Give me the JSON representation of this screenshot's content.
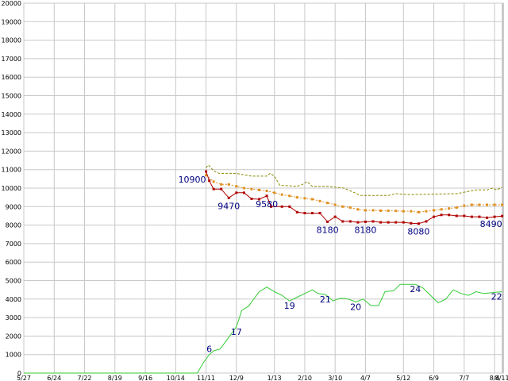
{
  "chart_data": {
    "type": "line",
    "title": "",
    "xlabel": "",
    "ylabel": "",
    "ylim": [
      0,
      20000
    ],
    "grid": true,
    "y_ticks": [
      0,
      1000,
      2000,
      3000,
      4000,
      5000,
      6000,
      7000,
      8000,
      9000,
      10000,
      11000,
      12000,
      13000,
      14000,
      15000,
      16000,
      17000,
      18000,
      19000,
      20000
    ],
    "x_ticks": [
      {
        "label": "5/27",
        "x": 0
      },
      {
        "label": "6/24",
        "x": 28
      },
      {
        "label": "7/22",
        "x": 56
      },
      {
        "label": "8/19",
        "x": 84
      },
      {
        "label": "9/16",
        "x": 112
      },
      {
        "label": "10/14",
        "x": 140
      },
      {
        "label": "11/11",
        "x": 168
      },
      {
        "label": "12/9",
        "x": 196
      },
      {
        "label": "1/13",
        "x": 231
      },
      {
        "label": "2/10",
        "x": 259
      },
      {
        "label": "3/10",
        "x": 287
      },
      {
        "label": "4/7",
        "x": 315
      },
      {
        "label": "5/12",
        "x": 350
      },
      {
        "label": "6/9",
        "x": 378
      },
      {
        "label": "7/7",
        "x": 406
      },
      {
        "label": "8/4",
        "x": 434
      },
      {
        "label": "8/11",
        "x": 441
      }
    ],
    "x_range": [
      0,
      442
    ],
    "series": [
      {
        "color": "#888800",
        "dash": "3,2",
        "markers": false,
        "points": [
          [
            168,
            11100
          ],
          [
            170,
            11250
          ],
          [
            172,
            11150
          ],
          [
            174,
            11000
          ],
          [
            176,
            10900
          ],
          [
            180,
            10800
          ],
          [
            196,
            10800
          ],
          [
            200,
            10750
          ],
          [
            210,
            10650
          ],
          [
            224,
            10650
          ],
          [
            227,
            10800
          ],
          [
            231,
            10650
          ],
          [
            236,
            10150
          ],
          [
            252,
            10100
          ],
          [
            257,
            10200
          ],
          [
            261,
            10350
          ],
          [
            266,
            10100
          ],
          [
            280,
            10100
          ],
          [
            295,
            10000
          ],
          [
            307,
            9700
          ],
          [
            310,
            9600
          ],
          [
            336,
            9600
          ],
          [
            343,
            9700
          ],
          [
            355,
            9650
          ],
          [
            399,
            9700
          ],
          [
            417,
            9900
          ],
          [
            427,
            9900
          ],
          [
            432,
            10000
          ],
          [
            436,
            9900
          ],
          [
            441,
            10050
          ]
        ]
      },
      {
        "color": "#e09020",
        "dash": "2,2",
        "markers": true,
        "marker_color": "#e09020",
        "points": [
          [
            168,
            10700
          ],
          [
            175,
            10350
          ],
          [
            182,
            10200
          ],
          [
            189,
            10200
          ],
          [
            196,
            10100
          ],
          [
            203,
            10000
          ],
          [
            210,
            9950
          ],
          [
            217,
            9900
          ],
          [
            224,
            9850
          ],
          [
            231,
            9750
          ],
          [
            238,
            9650
          ],
          [
            245,
            9580
          ],
          [
            252,
            9500
          ],
          [
            259,
            9450
          ],
          [
            266,
            9400
          ],
          [
            273,
            9300
          ],
          [
            280,
            9200
          ],
          [
            287,
            9100
          ],
          [
            294,
            9000
          ],
          [
            301,
            8950
          ],
          [
            308,
            8850
          ],
          [
            315,
            8800
          ],
          [
            322,
            8800
          ],
          [
            329,
            8780
          ],
          [
            336,
            8780
          ],
          [
            343,
            8770
          ],
          [
            350,
            8750
          ],
          [
            357,
            8750
          ],
          [
            364,
            8700
          ],
          [
            371,
            8750
          ],
          [
            378,
            8800
          ],
          [
            385,
            8850
          ],
          [
            392,
            8900
          ],
          [
            399,
            8950
          ],
          [
            406,
            9050
          ],
          [
            413,
            9100
          ],
          [
            420,
            9100
          ],
          [
            427,
            9100
          ],
          [
            434,
            9100
          ],
          [
            441,
            9100
          ]
        ]
      },
      {
        "color": "#b00000",
        "dash": "",
        "markers": true,
        "marker_color": "#b00000",
        "points": [
          [
            168,
            10900
          ],
          [
            171,
            10400
          ],
          [
            175,
            9950
          ],
          [
            182,
            9950
          ],
          [
            189,
            9470
          ],
          [
            196,
            9750
          ],
          [
            203,
            9750
          ],
          [
            210,
            9420
          ],
          [
            217,
            9400
          ],
          [
            224,
            9580
          ],
          [
            228,
            9000
          ],
          [
            238,
            9000
          ],
          [
            245,
            9000
          ],
          [
            252,
            8700
          ],
          [
            259,
            8650
          ],
          [
            266,
            8650
          ],
          [
            273,
            8650
          ],
          [
            280,
            8180
          ],
          [
            287,
            8450
          ],
          [
            294,
            8200
          ],
          [
            301,
            8200
          ],
          [
            308,
            8150
          ],
          [
            315,
            8180
          ],
          [
            322,
            8200
          ],
          [
            329,
            8150
          ],
          [
            336,
            8150
          ],
          [
            343,
            8150
          ],
          [
            350,
            8150
          ],
          [
            357,
            8100
          ],
          [
            364,
            8080
          ],
          [
            371,
            8200
          ],
          [
            378,
            8450
          ],
          [
            385,
            8550
          ],
          [
            392,
            8550
          ],
          [
            399,
            8500
          ],
          [
            406,
            8500
          ],
          [
            413,
            8450
          ],
          [
            420,
            8450
          ],
          [
            427,
            8400
          ],
          [
            434,
            8450
          ],
          [
            441,
            8490
          ]
        ]
      },
      {
        "color": "#33cc33",
        "dash": "",
        "markers": false,
        "points": [
          [
            0,
            0
          ],
          [
            160,
            0
          ],
          [
            166,
            600
          ],
          [
            171,
            1000
          ],
          [
            175,
            1200
          ],
          [
            181,
            1300
          ],
          [
            186,
            1700
          ],
          [
            191,
            2100
          ],
          [
            196,
            2500
          ],
          [
            201,
            3400
          ],
          [
            207,
            3600
          ],
          [
            212,
            4000
          ],
          [
            217,
            4400
          ],
          [
            224,
            4650
          ],
          [
            231,
            4400
          ],
          [
            238,
            4200
          ],
          [
            245,
            3900
          ],
          [
            252,
            4100
          ],
          [
            259,
            4300
          ],
          [
            266,
            4500
          ],
          [
            271,
            4300
          ],
          [
            278,
            4250
          ],
          [
            285,
            3900
          ],
          [
            292,
            4050
          ],
          [
            299,
            4000
          ],
          [
            306,
            3850
          ],
          [
            313,
            4000
          ],
          [
            320,
            3650
          ],
          [
            327,
            3650
          ],
          [
            333,
            4400
          ],
          [
            341,
            4450
          ],
          [
            347,
            4800
          ],
          [
            355,
            4800
          ],
          [
            361,
            4800
          ],
          [
            368,
            4600
          ],
          [
            375,
            4200
          ],
          [
            382,
            3800
          ],
          [
            389,
            4000
          ],
          [
            396,
            4500
          ],
          [
            403,
            4300
          ],
          [
            410,
            4200
          ],
          [
            417,
            4400
          ],
          [
            424,
            4300
          ],
          [
            441,
            4400
          ]
        ]
      }
    ],
    "data_labels": [
      {
        "text": "10900",
        "x": 168,
        "y": 10900,
        "anchor": "end",
        "dy": 14
      },
      {
        "text": "9470",
        "x": 189,
        "y": 9470,
        "anchor": "middle",
        "dy": 14
      },
      {
        "text": "9580",
        "x": 224,
        "y": 9580,
        "anchor": "middle",
        "dy": 14
      },
      {
        "text": "8180",
        "x": 280,
        "y": 8180,
        "anchor": "middle",
        "dy": 14
      },
      {
        "text": "8180",
        "x": 315,
        "y": 8180,
        "anchor": "middle",
        "dy": 14
      },
      {
        "text": "8080",
        "x": 364,
        "y": 8080,
        "anchor": "middle",
        "dy": 14
      },
      {
        "text": "8490",
        "x": 441,
        "y": 8490,
        "anchor": "end",
        "dy": 14
      },
      {
        "text": "6",
        "x": 171,
        "y": 1000,
        "anchor": "middle",
        "dy": -3
      },
      {
        "text": "17",
        "x": 196,
        "y": 2500,
        "anchor": "middle",
        "dy": 10
      },
      {
        "text": "19",
        "x": 245,
        "y": 3900,
        "anchor": "middle",
        "dy": 10
      },
      {
        "text": "21",
        "x": 278,
        "y": 4250,
        "anchor": "middle",
        "dy": 10
      },
      {
        "text": "20",
        "x": 306,
        "y": 3850,
        "anchor": "middle",
        "dy": 10
      },
      {
        "text": "24",
        "x": 361,
        "y": 4800,
        "anchor": "middle",
        "dy": 10
      },
      {
        "text": "22",
        "x": 441,
        "y": 4400,
        "anchor": "end",
        "dy": 10
      }
    ]
  }
}
